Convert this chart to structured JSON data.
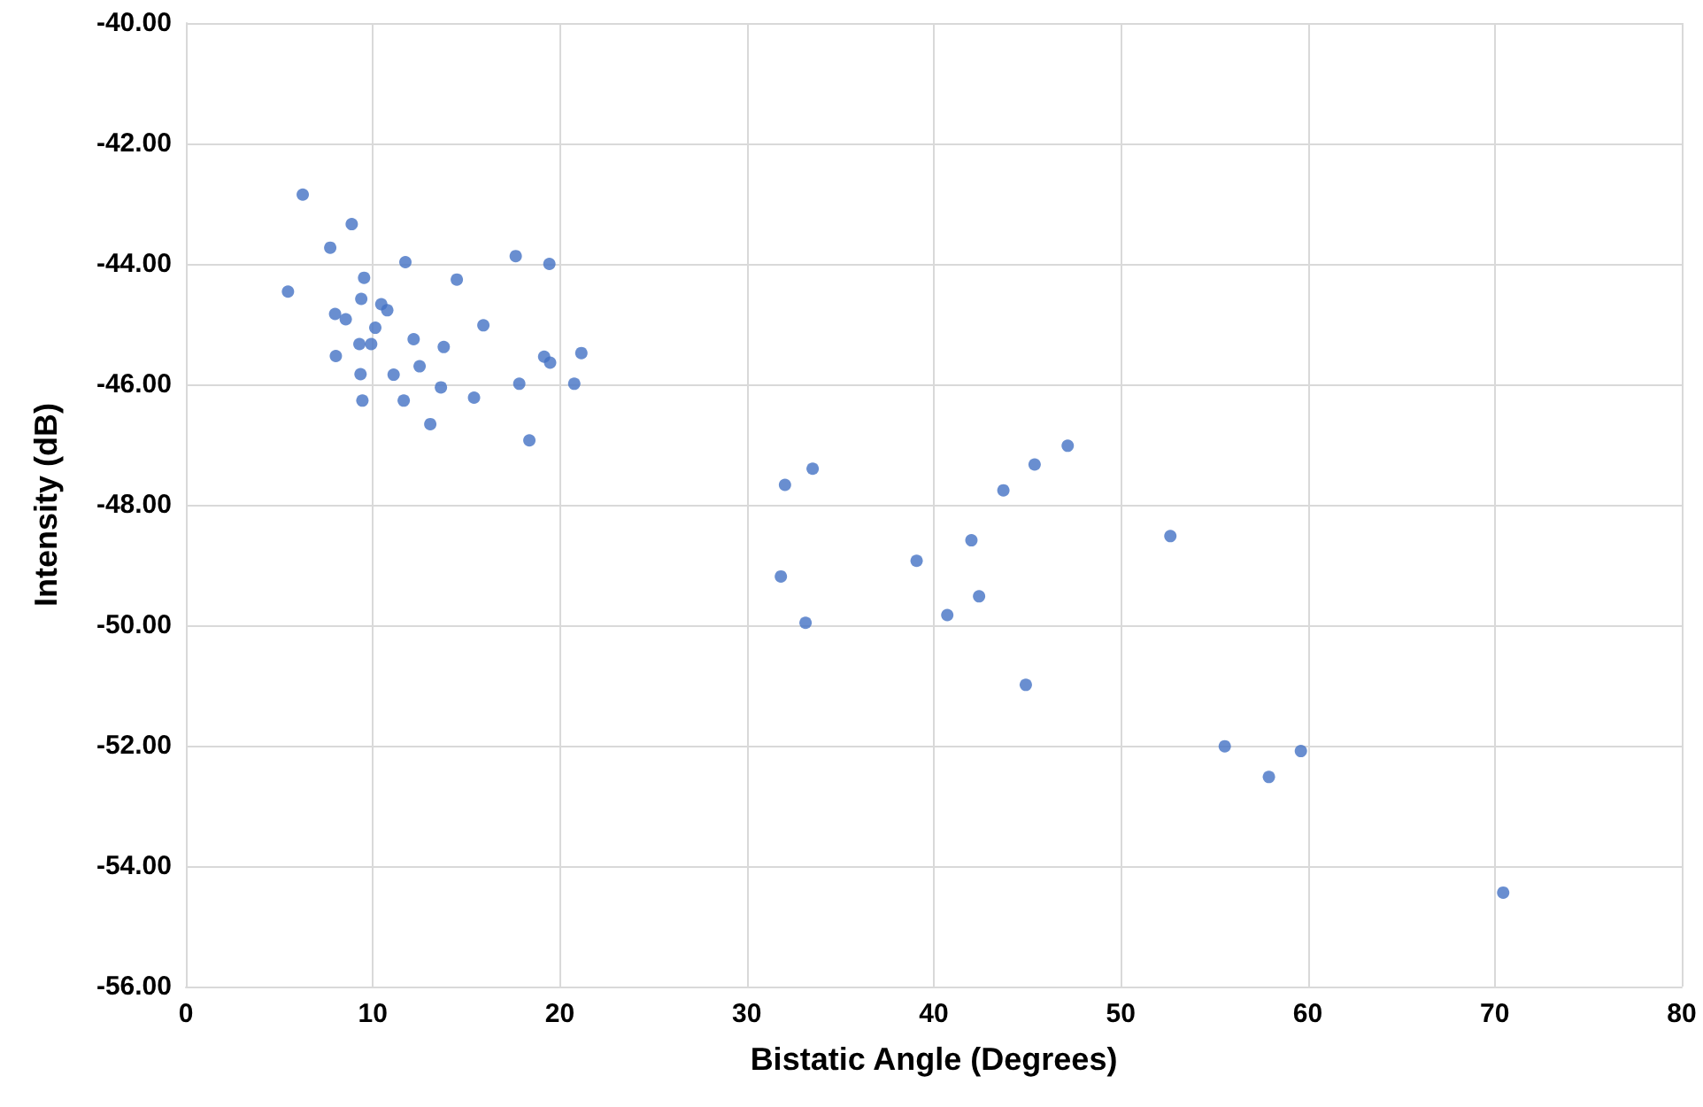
{
  "chart_data": {
    "type": "scatter",
    "xlabel": "Bistatic Angle (Degrees)",
    "ylabel": "Intensity (dB)",
    "x": [
      6.25,
      8.87,
      7.72,
      11.74,
      17.64,
      19.44,
      5.46,
      9.53,
      14.49,
      9.38,
      10.45,
      10.77,
      7.98,
      8.55,
      10.13,
      15.91,
      9.28,
      9.91,
      12.18,
      13.79,
      8.02,
      19.16,
      19.48,
      21.15,
      12.5,
      9.34,
      11.11,
      13.64,
      17.83,
      20.77,
      9.44,
      11.65,
      15.41,
      13.07,
      18.37,
      32.04,
      33.52,
      43.72,
      45.39,
      47.16,
      42.01,
      39.08,
      31.82,
      42.42,
      40.72,
      33.14,
      44.92,
      52.65,
      55.56,
      57.92,
      59.63,
      70.45
    ],
    "values": [
      -42.85,
      -43.34,
      -43.73,
      -43.97,
      -43.87,
      -44.0,
      -44.46,
      -44.23,
      -44.26,
      -44.58,
      -44.67,
      -44.77,
      -44.83,
      -44.92,
      -45.06,
      -45.02,
      -45.33,
      -45.33,
      -45.25,
      -45.38,
      -45.53,
      -45.54,
      -45.64,
      -45.48,
      -45.7,
      -45.83,
      -45.84,
      -46.05,
      -45.99,
      -45.99,
      -46.27,
      -46.27,
      -46.22,
      -46.66,
      -46.93,
      -47.67,
      -47.4,
      -47.76,
      -47.33,
      -47.02,
      -48.59,
      -48.93,
      -49.19,
      -49.52,
      -49.83,
      -49.96,
      -50.99,
      -48.52,
      -52.01,
      -52.52,
      -52.09,
      -54.44
    ],
    "color": "#4472c4",
    "marker": "circle",
    "grid": true,
    "xlim": [
      0,
      80
    ],
    "xticks": [
      0,
      10,
      20,
      30,
      40,
      50,
      60,
      70,
      80
    ],
    "ylim": [
      -56,
      -40
    ],
    "yticks": [
      {
        "value": -56,
        "label": "-56.00"
      },
      {
        "value": -54,
        "label": "-54.00"
      },
      {
        "value": -52,
        "label": "-52.00"
      },
      {
        "value": -50,
        "label": "-50.00"
      },
      {
        "value": -48,
        "label": "-48.00"
      },
      {
        "value": -46,
        "label": "-46.00"
      },
      {
        "value": -44,
        "label": "-44.00"
      },
      {
        "value": -42,
        "label": "-42.00"
      },
      {
        "value": -40,
        "label": "-40.00"
      }
    ]
  }
}
